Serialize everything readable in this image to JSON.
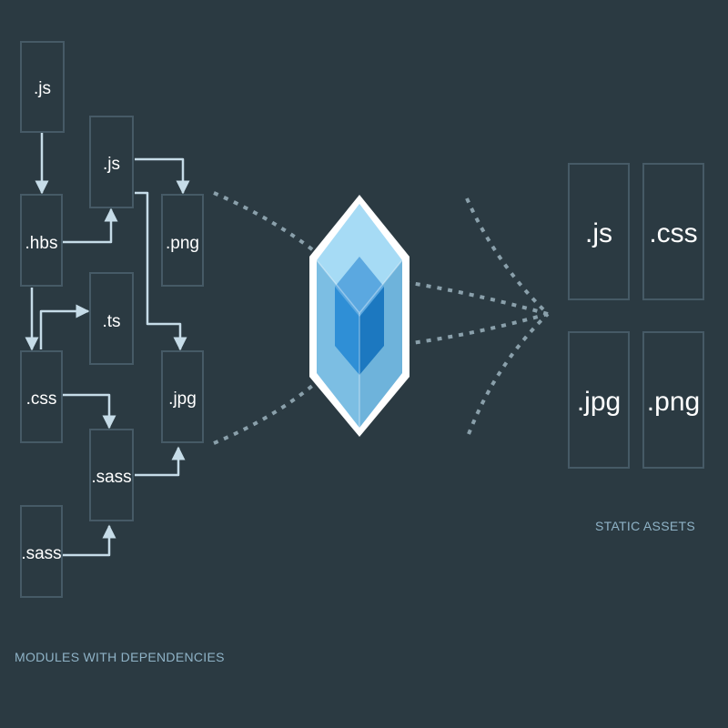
{
  "modules": {
    "js_top": ".js",
    "js_mid": ".js",
    "hbs": ".hbs",
    "png": ".png",
    "ts": ".ts",
    "css": ".css",
    "jpg": ".jpg",
    "sass_mid": ".sass",
    "sass_bottom": ".sass"
  },
  "assets": {
    "js": ".js",
    "css": ".css",
    "jpg": ".jpg",
    "png": ".png"
  },
  "captions": {
    "modules": "MODULES WITH DEPENDENCIES",
    "assets": "STATIC ASSETS"
  },
  "colors": {
    "background": "#2b3a42",
    "box_border": "#465a66",
    "arrow": "#c6dce8",
    "caption": "#8fb3c7",
    "cube_outer": "#8dd6f9",
    "cube_inner": "#1c78c0"
  }
}
